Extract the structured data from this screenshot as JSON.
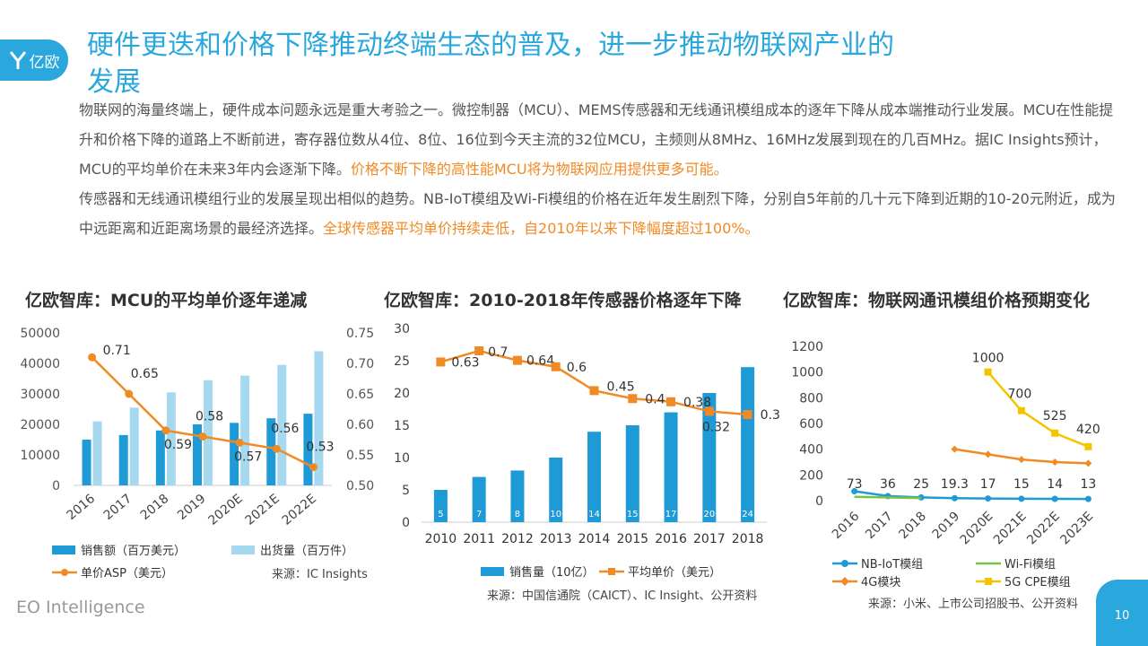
{
  "logo": {
    "text": "亿欧"
  },
  "title": "硬件更迭和价格下降推动终端生态的普及，进一步推动物联网产业的发展",
  "para1_a": "物联网的海量终端上，硬件成本问题永远是重大考验之一。微控制器（MCU）、MEMS传感器和无线通讯模组成本的逐年下降从成本端推动行业发展。MCU在性能提升和价格下降的道路上不断前进，寄存器位数从4位、8位、16位到今天主流的32位MCU，主频则从8MHz、16MHz发展到现在的几百MHz。据IC Insights预计，MCU的平均单价在未来3年内会逐渐下降。",
  "para1_b": "价格不断下降的高性能MCU将为物联网应用提供更多可能。",
  "para2_a": "传感器和无线通讯模组行业的发展呈现出相似的趋势。NB-IoT模组及Wi-Fi模组的价格在近年发生剧烈下降，分别自5年前的几十元下降到近期的10-20元附近，成为中远距离和近距离场景的最经济选择。",
  "para2_b": "全球传感器平均单价持续走低，自2010年以来下降幅度超过100%。",
  "footer": "EO Intelligence",
  "page_number": "10",
  "chart_data": [
    {
      "type": "bar",
      "title": "亿欧智库：MCU的平均单价逐年递减",
      "categories": [
        "2016",
        "2017",
        "2018",
        "2019",
        "2020E",
        "2021E",
        "2022E"
      ],
      "series": [
        {
          "name": "销售额（百万美元）",
          "type": "bar",
          "axis": "left",
          "values": [
            15000,
            16500,
            18000,
            20000,
            20500,
            22000,
            23500
          ],
          "color": "#1e9ad6"
        },
        {
          "name": "出货量（百万件）",
          "type": "bar",
          "axis": "left",
          "values": [
            21000,
            25500,
            30500,
            34500,
            36000,
            39500,
            44000
          ],
          "color": "#a6d9ef"
        },
        {
          "name": "单价ASP（美元）",
          "type": "line",
          "axis": "right",
          "values": [
            0.71,
            0.65,
            0.59,
            0.58,
            0.57,
            0.56,
            0.53
          ],
          "color": "#f08a24"
        }
      ],
      "left_ticks": [
        "0",
        "10000",
        "20000",
        "30000",
        "40000",
        "50000"
      ],
      "right_ticks": [
        "0.50",
        "0.55",
        "0.60",
        "0.65",
        "0.70",
        "0.75"
      ],
      "ylim_left": [
        0,
        50000
      ],
      "ylim_right": [
        0.5,
        0.75
      ],
      "source": "来源：IC Insights"
    },
    {
      "type": "bar",
      "title": "亿欧智库：2010-2018年传感器价格逐年下降",
      "categories": [
        "2010",
        "2011",
        "2012",
        "2013",
        "2014",
        "2015",
        "2016",
        "2017",
        "2018"
      ],
      "series": [
        {
          "name": "销售量（10亿）",
          "type": "bar",
          "values": [
            5,
            7,
            8,
            10,
            14,
            15,
            17,
            20,
            24
          ],
          "color": "#1e9ad6"
        },
        {
          "name": "平均单价（美元）",
          "type": "line",
          "values": [
            0.63,
            0.7,
            0.64,
            0.6,
            0.45,
            0.4,
            0.38,
            0.32,
            0.3
          ],
          "color": "#f08a24"
        }
      ],
      "left_ticks": [
        "0",
        "5",
        "10",
        "15",
        "20",
        "25",
        "30"
      ],
      "ylim": [
        0,
        30
      ],
      "source": "来源：中国信通院（CAICT）、IC Insight、公开资料"
    },
    {
      "type": "line",
      "title": "亿欧智库：物联网通讯模组价格预期变化",
      "categories": [
        "2016",
        "2017",
        "2018",
        "2019",
        "2020E",
        "2021E",
        "2022E",
        "2023E"
      ],
      "series": [
        {
          "name": "NB-IoT模组",
          "values": [
            73,
            36,
            25,
            19.3,
            17,
            15,
            14,
            13
          ],
          "color": "#1e9ad6"
        },
        {
          "name": "Wi-Fi模组",
          "values": [
            30,
            25,
            20,
            null,
            null,
            null,
            null,
            null
          ],
          "color": "#7cc242"
        },
        {
          "name": "4G模块",
          "values": [
            null,
            null,
            null,
            400,
            360,
            320,
            300,
            290
          ],
          "color": "#f08a24"
        },
        {
          "name": "5G CPE模组",
          "values": [
            null,
            null,
            null,
            null,
            1000,
            700,
            525,
            420
          ],
          "color": "#f5c400"
        }
      ],
      "labels_top": [
        "73",
        "36",
        "25",
        "19.3",
        "17",
        "15",
        "14",
        "13"
      ],
      "labels_5g": [
        "1000",
        "700",
        "525",
        "420"
      ],
      "left_ticks": [
        "0",
        "200",
        "400",
        "600",
        "800",
        "1000",
        "1200"
      ],
      "ylim": [
        0,
        1200
      ],
      "source": "来源：小米、上市公司招股书、公开资料"
    }
  ]
}
